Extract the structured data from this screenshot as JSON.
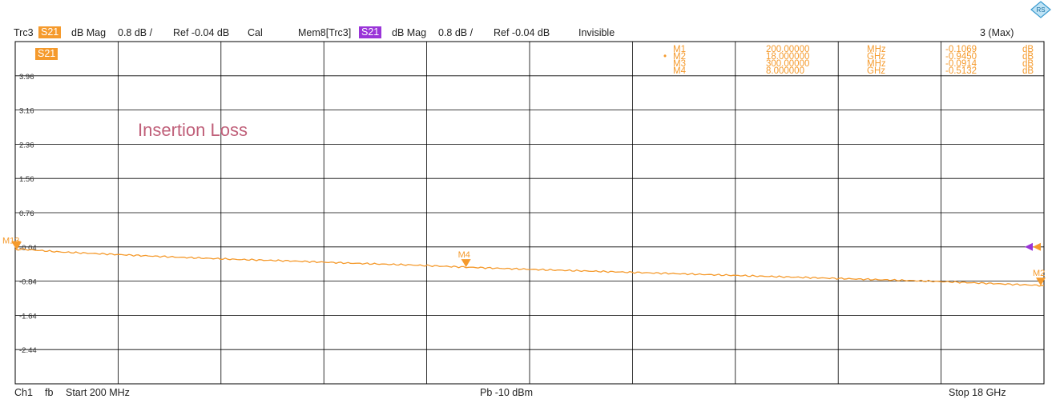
{
  "logo": {
    "icon": "rohde-schwarz-logo-icon",
    "text": "RS"
  },
  "header": {
    "trace": "Trc3",
    "trace_param": "S21",
    "trace_format": "dB Mag",
    "trace_scale": "0.8 dB /",
    "trace_ref": "Ref -0.04 dB",
    "trace_cal": "Cal",
    "mem_trace": "Mem8[Trc3]",
    "mem_param": "S21",
    "mem_format": "dB Mag",
    "mem_scale": "0.8 dB /",
    "mem_ref": "Ref -0.04 dB",
    "mem_state": "Invisible",
    "max_label": "3 (Max)"
  },
  "diagram": {
    "trace_tag": "S21",
    "annotation": "Insertion Loss",
    "colors": {
      "trace": "#f59a2c",
      "memory": "#9a34d8",
      "grid": "#000000",
      "annotation": "#c0607a"
    }
  },
  "markers": [
    {
      "name": "M1",
      "value": "200.00000",
      "unit": "MHz",
      "reading": "-0.1069",
      "reading_unit": "dB"
    },
    {
      "name": "M2",
      "value": "18.000000",
      "unit": "GHz",
      "reading": "-0.9450",
      "reading_unit": "dB"
    },
    {
      "name": "M3",
      "value": "300.00000",
      "unit": "MHz",
      "reading": "-0.0914",
      "reading_unit": "dB"
    },
    {
      "name": "M4",
      "value": "8.000000",
      "unit": "GHz",
      "reading": "-0.5132",
      "reading_unit": "dB"
    }
  ],
  "footer": {
    "channel": "Ch1",
    "sweep_mode": "fb",
    "start": "Start 200 MHz",
    "power": "Pb  -10 dBm",
    "stop": "Stop 18 GHz"
  },
  "chart_data": {
    "type": "line",
    "title": "",
    "xlabel": "",
    "ylabel": "",
    "x_unit": "GHz",
    "xlim": [
      0.2,
      18
    ],
    "ylim": [
      -3.24,
      4.76
    ],
    "ytick_labels": [
      "3.96",
      "3.16",
      "2.36",
      "1.56",
      "0.76",
      "-0.04",
      "-0.84",
      "-1.64",
      "-2.44"
    ],
    "ytick_values": [
      3.96,
      3.16,
      2.36,
      1.56,
      0.76,
      -0.04,
      -0.84,
      -1.64,
      -2.44
    ],
    "grid": true,
    "series": [
      {
        "name": "S21",
        "x": [
          0.2,
          0.3,
          1.0,
          2.0,
          3.0,
          4.0,
          5.0,
          6.0,
          7.0,
          8.0,
          9.0,
          10.0,
          11.0,
          12.0,
          13.0,
          14.0,
          15.0,
          16.0,
          17.0,
          18.0
        ],
        "values": [
          -0.1069,
          -0.0914,
          -0.16,
          -0.22,
          -0.28,
          -0.33,
          -0.37,
          -0.42,
          -0.46,
          -0.5132,
          -0.56,
          -0.6,
          -0.64,
          -0.68,
          -0.72,
          -0.76,
          -0.8,
          -0.84,
          -0.89,
          -0.945
        ]
      }
    ]
  }
}
